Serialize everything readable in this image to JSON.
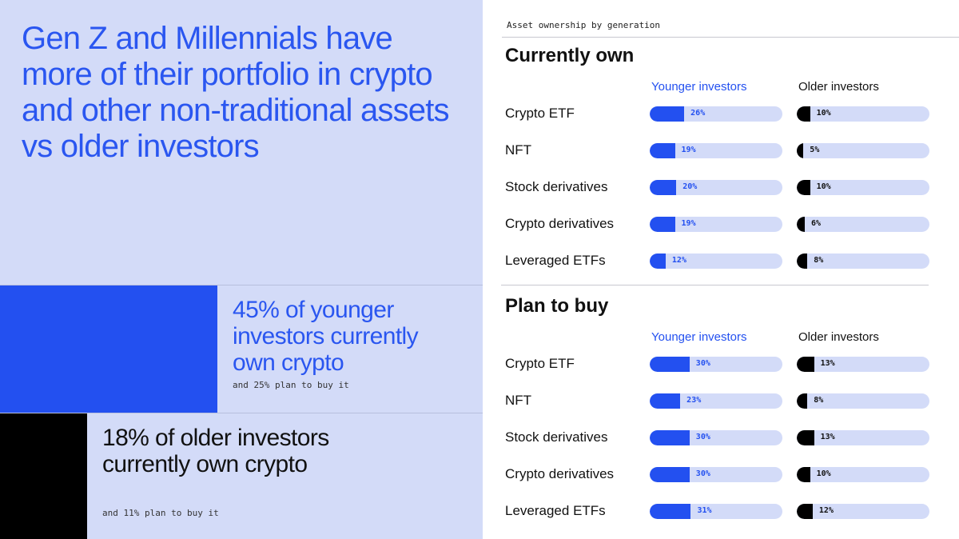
{
  "left": {
    "headline": "Gen Z and Millennials have more of their portfolio in crypto and other non-traditional assets vs older investors",
    "stats": [
      {
        "value": 45,
        "big": "45% of younger investors currently own crypto",
        "small": "and 25% plan to buy it",
        "color": "#2350f0"
      },
      {
        "value": 18,
        "big": "18% of older investors currently own crypto",
        "small": "and 11% plan to buy it",
        "color": "#000000"
      }
    ]
  },
  "colors": {
    "younger": "#2350f0",
    "older": "#000000",
    "track": "#d3dbf8"
  },
  "chart_data": {
    "type": "bar",
    "title": "Asset ownership by generation",
    "xlim": [
      0,
      100
    ],
    "panels": [
      {
        "title": "Currently own",
        "categories": [
          "Crypto ETF",
          "NFT",
          "Stock derivatives",
          "Crypto derivatives",
          "Leveraged ETFs"
        ],
        "series": [
          {
            "name": "Younger investors",
            "values": [
              26,
              19,
              20,
              19,
              12
            ]
          },
          {
            "name": "Older investors",
            "values": [
              10,
              5,
              10,
              6,
              8
            ]
          }
        ]
      },
      {
        "title": "Plan to buy",
        "categories": [
          "Crypto ETF",
          "NFT",
          "Stock derivatives",
          "Crypto derivatives",
          "Leveraged ETFs"
        ],
        "series": [
          {
            "name": "Younger investors",
            "values": [
              30,
              23,
              30,
              30,
              31
            ]
          },
          {
            "name": "Older investors",
            "values": [
              13,
              8,
              13,
              10,
              12
            ]
          }
        ]
      }
    ]
  }
}
